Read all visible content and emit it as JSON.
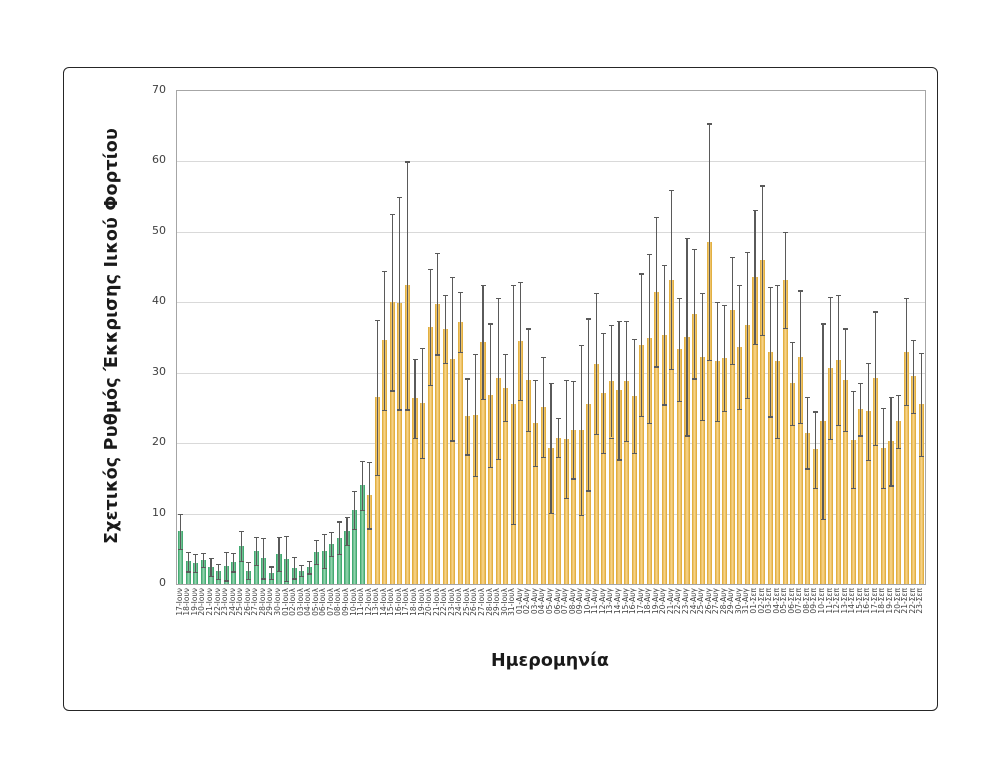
{
  "chart_data": {
    "type": "bar",
    "title": "",
    "xlabel": "Ημερομηνία",
    "ylabel": "Σχετικός Ρυθμός Έκκρισης Ιικού Φορτίου",
    "ylim": [
      0,
      70
    ],
    "y_ticks": [
      0,
      10,
      20,
      30,
      40,
      50,
      60,
      70
    ],
    "grid": true,
    "error_bars": true,
    "legend": "none",
    "green_bar_count": 25,
    "categories": [
      "17-Ιουν",
      "18-Ιουν",
      "19-Ιουν",
      "20-Ιουν",
      "21-Ιουν",
      "22-Ιουν",
      "23-Ιουν",
      "24-Ιουν",
      "25-Ιουν",
      "26-Ιουν",
      "27-Ιουν",
      "28-Ιουν",
      "29-Ιουν",
      "30-Ιουν",
      "01-Ιουλ",
      "02-Ιουλ",
      "03-Ιουλ",
      "04-Ιουλ",
      "05-Ιουλ",
      "06-Ιουλ",
      "07-Ιουλ",
      "08-Ιουλ",
      "09-Ιουλ",
      "10-Ιουλ",
      "11-Ιουλ",
      "12-Ιουλ",
      "13-Ιουλ",
      "14-Ιουλ",
      "15-Ιουλ",
      "16-Ιουλ",
      "17-Ιουλ",
      "18-Ιουλ",
      "19-Ιουλ",
      "20-Ιουλ",
      "21-Ιουλ",
      "22-Ιουλ",
      "23-Ιουλ",
      "24-Ιουλ",
      "25-Ιουλ",
      "26-Ιουλ",
      "27-Ιουλ",
      "28-Ιουλ",
      "29-Ιουλ",
      "30-Ιουλ",
      "31-Ιουλ",
      "01-Αυγ",
      "02-Αυγ",
      "03-Αυγ",
      "04-Αυγ",
      "05-Αυγ",
      "06-Αυγ",
      "07-Αυγ",
      "08-Αυγ",
      "09-Αυγ",
      "10-Αυγ",
      "11-Αυγ",
      "12-Αυγ",
      "13-Αυγ",
      "14-Αυγ",
      "15-Αυγ",
      "16-Αυγ",
      "17-Αυγ",
      "18-Αυγ",
      "19-Αυγ",
      "20-Αυγ",
      "21-Αυγ",
      "22-Αυγ",
      "23-Αυγ",
      "24-Αυγ",
      "25-Αυγ",
      "26-Αυγ",
      "27-Αυγ",
      "28-Αυγ",
      "29-Αυγ",
      "30-Αυγ",
      "31-Αυγ",
      "01-Σεπ",
      "02-Σεπ",
      "03-Σεπ",
      "04-Σεπ",
      "05-Σεπ",
      "06-Σεπ",
      "07-Σεπ",
      "08-Σεπ",
      "09-Σεπ",
      "10-Σεπ",
      "11-Σεπ",
      "12-Σεπ",
      "13-Σεπ",
      "14-Σεπ",
      "15-Σεπ",
      "16-Σεπ",
      "17-Σεπ",
      "18-Σεπ",
      "19-Σεπ",
      "20-Σεπ",
      "21-Σεπ",
      "22-Σεπ",
      "23-Σεπ"
    ],
    "values": [
      7.5,
      3.2,
      3.0,
      3.4,
      2.4,
      1.8,
      2.5,
      3.1,
      5.4,
      1.9,
      4.7,
      3.7,
      1.6,
      4.3,
      3.6,
      2.3,
      1.9,
      2.4,
      4.6,
      4.7,
      5.7,
      6.6,
      7.5,
      10.5,
      14.0,
      12.6,
      26.5,
      34.6,
      40.0,
      39.9,
      42.4,
      26.4,
      25.7,
      36.5,
      39.8,
      36.2,
      32.0,
      37.2,
      23.8,
      24.0,
      34.4,
      26.8,
      29.2,
      27.9,
      25.5,
      34.5,
      29.0,
      22.9,
      25.2,
      19.3,
      20.8,
      20.6,
      21.9,
      21.9,
      25.5,
      31.3,
      27.1,
      28.8,
      27.5,
      28.8,
      26.7,
      34.0,
      34.9,
      41.5,
      35.4,
      43.2,
      33.3,
      35.1,
      38.4,
      32.3,
      48.6,
      31.6,
      32.1,
      38.9,
      33.7,
      36.8,
      43.6,
      46.0,
      33.0,
      31.6,
      43.2,
      28.5,
      32.3,
      21.5,
      19.1,
      23.1,
      30.7,
      31.8,
      29.0,
      20.5,
      24.8,
      24.5,
      29.2,
      19.3,
      20.3,
      23.1,
      33.0,
      29.5,
      25.5
    ],
    "errors": [
      2.5,
      1.4,
      1.3,
      1.0,
      1.3,
      1.1,
      2.0,
      1.3,
      2.1,
      1.2,
      2.0,
      2.9,
      0.9,
      2.4,
      3.2,
      1.5,
      0.8,
      0.9,
      1.7,
      2.4,
      1.7,
      2.3,
      2.0,
      2.7,
      3.5,
      4.7,
      11.0,
      9.9,
      12.5,
      15.1,
      17.6,
      5.6,
      7.8,
      8.2,
      7.2,
      4.8,
      11.6,
      4.3,
      5.4,
      8.7,
      8.1,
      10.2,
      11.4,
      4.8,
      17.0,
      8.4,
      7.3,
      6.1,
      7.1,
      9.2,
      2.8,
      8.4,
      6.9,
      12.1,
      12.2,
      10.0,
      8.5,
      8.0,
      9.8,
      8.5,
      8.1,
      10.1,
      12.0,
      10.6,
      9.9,
      12.7,
      7.3,
      14.0,
      9.2,
      9.0,
      16.8,
      8.5,
      7.5,
      7.6,
      8.8,
      10.4,
      9.5,
      10.6,
      9.2,
      10.9,
      6.8,
      5.9,
      9.4,
      5.1,
      5.4,
      13.9,
      10.1,
      9.2,
      7.3,
      6.9,
      3.7,
      6.9,
      9.5,
      5.7,
      6.3,
      3.8,
      7.6,
      5.2,
      7.3
    ]
  },
  "colors": {
    "green_edge": "#2f9e62",
    "green_center": "#8fd2ab",
    "orange_edge": "#dda62e",
    "orange_center": "#f6d287",
    "error_bar": "#5a5a5a",
    "gridline": "#d9d9d9",
    "plot_border": "#a6a6a6",
    "frame_border": "#262626",
    "text": "#1a1a1a"
  }
}
